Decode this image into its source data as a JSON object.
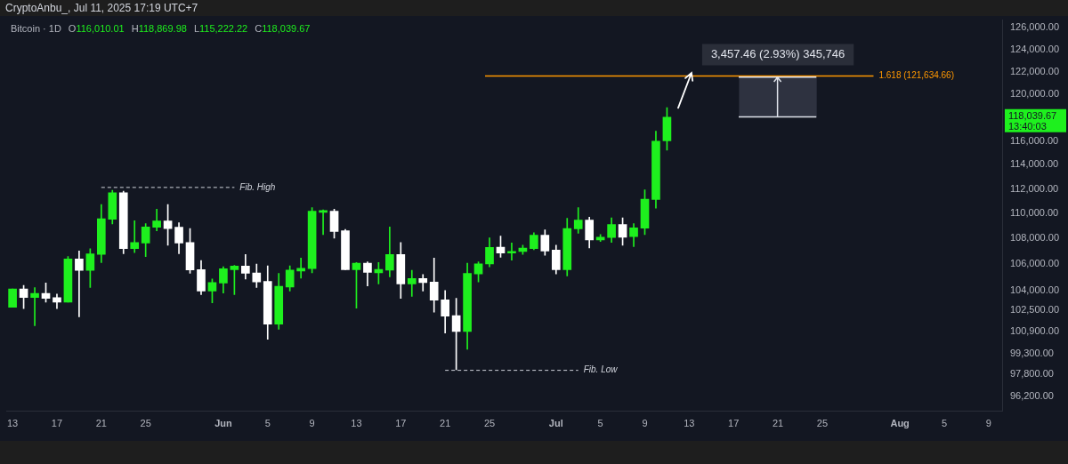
{
  "chart_data": {
    "type": "candlestick",
    "title": "Bitcoin · 1D",
    "subtitle": "CryptoAnbu_, Jul 11, 2025 17:19 UTC+7",
    "x": [
      "2025-05-13",
      "2025-05-14",
      "2025-05-15",
      "2025-05-16",
      "2025-05-17",
      "2025-05-18",
      "2025-05-19",
      "2025-05-20",
      "2025-05-21",
      "2025-05-22",
      "2025-05-23",
      "2025-05-24",
      "2025-05-25",
      "2025-05-26",
      "2025-05-27",
      "2025-05-28",
      "2025-05-29",
      "2025-05-30",
      "2025-05-31",
      "2025-06-01",
      "2025-06-02",
      "2025-06-03",
      "2025-06-04",
      "2025-06-05",
      "2025-06-06",
      "2025-06-07",
      "2025-06-08",
      "2025-06-09",
      "2025-06-10",
      "2025-06-11",
      "2025-06-12",
      "2025-06-13",
      "2025-06-14",
      "2025-06-15",
      "2025-06-16",
      "2025-06-17",
      "2025-06-18",
      "2025-06-19",
      "2025-06-20",
      "2025-06-21",
      "2025-06-22",
      "2025-06-23",
      "2025-06-24",
      "2025-06-25",
      "2025-06-26",
      "2025-06-27",
      "2025-06-28",
      "2025-06-29",
      "2025-06-30",
      "2025-07-01",
      "2025-07-02",
      "2025-07-03",
      "2025-07-04",
      "2025-07-05",
      "2025-07-06",
      "2025-07-07",
      "2025-07-08",
      "2025-07-09",
      "2025-07-10",
      "2025-07-11"
    ],
    "ohlc": [
      [
        102720,
        104100,
        102720,
        104100
      ],
      [
        104090,
        104370,
        102610,
        103450
      ],
      [
        103450,
        104200,
        101330,
        103760
      ],
      [
        103760,
        104550,
        103100,
        103380
      ],
      [
        103430,
        103710,
        102610,
        103100
      ],
      [
        103100,
        106590,
        103100,
        106400
      ],
      [
        106400,
        107030,
        101990,
        105520
      ],
      [
        105520,
        107210,
        104200,
        106810
      ],
      [
        106760,
        110730,
        106130,
        109590
      ],
      [
        109540,
        111880,
        109170,
        111690
      ],
      [
        111690,
        111810,
        106810,
        107210
      ],
      [
        107210,
        109420,
        106900,
        107700
      ],
      [
        107660,
        109190,
        106590,
        108920
      ],
      [
        108900,
        110360,
        108620,
        109400
      ],
      [
        109400,
        110730,
        107480,
        108800
      ],
      [
        108900,
        109260,
        106810,
        107660
      ],
      [
        107700,
        108800,
        105290,
        105560
      ],
      [
        105580,
        106290,
        103670,
        103930
      ],
      [
        103930,
        104860,
        103050,
        104590
      ],
      [
        104550,
        105800,
        103780,
        105650
      ],
      [
        105580,
        105910,
        103670,
        105850
      ],
      [
        105850,
        106760,
        104860,
        105290
      ],
      [
        105320,
        106000,
        104200,
        104630
      ],
      [
        104680,
        105870,
        100340,
        101450
      ],
      [
        101450,
        105290,
        101070,
        104300
      ],
      [
        104240,
        105870,
        103930,
        105540
      ],
      [
        105470,
        106470,
        104920,
        105690
      ],
      [
        105650,
        110480,
        105340,
        110190
      ],
      [
        110090,
        110290,
        108320,
        110240
      ],
      [
        110190,
        110360,
        108040,
        108570
      ],
      [
        108620,
        108730,
        105580,
        105580
      ],
      [
        105580,
        106130,
        102650,
        106070
      ],
      [
        106070,
        106180,
        104330,
        105360
      ],
      [
        105340,
        106130,
        104480,
        105600
      ],
      [
        105540,
        108920,
        105030,
        106760
      ],
      [
        106760,
        107700,
        103380,
        104480
      ],
      [
        104480,
        105520,
        103540,
        104900
      ],
      [
        104900,
        105210,
        103930,
        104590
      ],
      [
        104630,
        106470,
        102350,
        103250
      ],
      [
        103270,
        103970,
        100790,
        102040
      ],
      [
        102090,
        103380,
        98130,
        100900
      ],
      [
        100900,
        106070,
        99610,
        105290
      ],
      [
        105250,
        106180,
        104630,
        106020
      ],
      [
        106020,
        108070,
        105800,
        107300
      ],
      [
        107330,
        108210,
        106540,
        106870
      ],
      [
        106870,
        107660,
        106310,
        106990
      ],
      [
        106990,
        107480,
        106760,
        107260
      ],
      [
        107210,
        108460,
        107130,
        108280
      ],
      [
        108280,
        108690,
        106690,
        107030
      ],
      [
        107100,
        107480,
        105250,
        105580
      ],
      [
        105580,
        109610,
        105090,
        108800
      ],
      [
        108780,
        110480,
        108430,
        109470
      ],
      [
        109470,
        109700,
        107260,
        107890
      ],
      [
        107890,
        108320,
        107770,
        108110
      ],
      [
        108090,
        109650,
        107700,
        109120
      ],
      [
        109120,
        109650,
        107480,
        108110
      ],
      [
        108160,
        109190,
        107370,
        108850
      ],
      [
        108830,
        111930,
        108320,
        111160
      ],
      [
        111130,
        116830,
        110440,
        115970
      ],
      [
        116010.01,
        118869.98,
        115222.22,
        118039.67
      ]
    ],
    "colors": [
      "#1ef01e",
      "#ffffff",
      "#1ef01e",
      "#ffffff",
      "#ffffff",
      "#1ef01e",
      "#ffffff",
      "#1ef01e",
      "#1ef01e",
      "#1ef01e",
      "#ffffff",
      "#1ef01e",
      "#1ef01e",
      "#1ef01e",
      "#ffffff",
      "#ffffff",
      "#ffffff",
      "#ffffff",
      "#1ef01e",
      "#1ef01e",
      "#1ef01e",
      "#ffffff",
      "#ffffff",
      "#ffffff",
      "#1ef01e",
      "#1ef01e",
      "#1ef01e",
      "#1ef01e",
      "#1ef01e",
      "#ffffff",
      "#ffffff",
      "#1ef01e",
      "#ffffff",
      "#1ef01e",
      "#1ef01e",
      "#ffffff",
      "#1ef01e",
      "#ffffff",
      "#ffffff",
      "#ffffff",
      "#ffffff",
      "#1ef01e",
      "#1ef01e",
      "#1ef01e",
      "#ffffff",
      "#1ef01e",
      "#1ef01e",
      "#1ef01e",
      "#ffffff",
      "#ffffff",
      "#1ef01e",
      "#1ef01e",
      "#ffffff",
      "#1ef01e",
      "#1ef01e",
      "#ffffff",
      "#1ef01e",
      "#1ef01e",
      "#1ef01e",
      "#1ef01e"
    ],
    "xlim": [
      "2025-05-12T12:00",
      "2025-08-10T07:00"
    ],
    "xticks": [
      {
        "value": "2025-05-13",
        "label": "13"
      },
      {
        "value": "2025-05-17",
        "label": "17"
      },
      {
        "value": "2025-05-21",
        "label": "21"
      },
      {
        "value": "2025-05-25",
        "label": "25"
      },
      {
        "value": "2025-06-01",
        "label": "Jun"
      },
      {
        "value": "2025-06-05",
        "label": "5"
      },
      {
        "value": "2025-06-09",
        "label": "9"
      },
      {
        "value": "2025-06-13",
        "label": "13"
      },
      {
        "value": "2025-06-17",
        "label": "17"
      },
      {
        "value": "2025-06-21",
        "label": "21"
      },
      {
        "value": "2025-06-25",
        "label": "25"
      },
      {
        "value": "2025-07-01",
        "label": "Jul"
      },
      {
        "value": "2025-07-05",
        "label": "5"
      },
      {
        "value": "2025-07-09",
        "label": "9"
      },
      {
        "value": "2025-07-13",
        "label": "13"
      },
      {
        "value": "2025-07-17",
        "label": "17"
      },
      {
        "value": "2025-07-21",
        "label": "21"
      },
      {
        "value": "2025-07-25",
        "label": "25"
      },
      {
        "value": "2025-08-01",
        "label": "Aug"
      },
      {
        "value": "2025-08-05",
        "label": "5"
      },
      {
        "value": "2025-08-09",
        "label": "9"
      }
    ],
    "log": true,
    "ylim": [
      95180,
      126720
    ],
    "yticks": [
      {
        "value": 96200,
        "label": "96,200.00"
      },
      {
        "value": 97800,
        "label": "97,800.00"
      },
      {
        "value": 99300,
        "label": "99,300.00"
      },
      {
        "value": 100900,
        "label": "100,900.00"
      },
      {
        "value": 102500,
        "label": "102,500.00"
      },
      {
        "value": 104000,
        "label": "104,000.00"
      },
      {
        "value": 106000,
        "label": "106,000.00"
      },
      {
        "value": 108000,
        "label": "108,000.00"
      },
      {
        "value": 110000,
        "label": "110,000.00"
      },
      {
        "value": 112000,
        "label": "112,000.00"
      },
      {
        "value": 114000,
        "label": "114,000.00"
      },
      {
        "value": 116000,
        "label": "116,000.00"
      },
      {
        "value": 120000,
        "label": "120,000.00"
      },
      {
        "value": 122000,
        "label": "122,000.00"
      },
      {
        "value": 124000,
        "label": "124,000.00"
      },
      {
        "value": 126000,
        "label": "126,000.00"
      }
    ],
    "ref_lines": [
      {
        "axis": "y",
        "value": 121634.66,
        "label": "1.618 (121,634.66)",
        "color": "#ff9800"
      },
      {
        "axis": "y",
        "value": 112120,
        "label": "Fib. High",
        "color": "#d1d4dc",
        "line_style": "dashed"
      },
      {
        "axis": "y",
        "value": 98080,
        "label": "Fib. Low",
        "color": "#d1d4dc",
        "line_style": "dashed"
      }
    ],
    "bands": [
      {
        "axis": "y",
        "from": 118039.67,
        "to": 121634.66,
        "color": "#2e3240"
      }
    ],
    "annotations": [
      {
        "text": "3,457.46 (2.93%) 345,746",
        "x": "2025-07-21",
        "y": 121634.66
      },
      "O116,010.01",
      "H118,869.98",
      "L115,222.22",
      "C118,039.67",
      "118,039.67",
      "13:40:03"
    ]
  }
}
